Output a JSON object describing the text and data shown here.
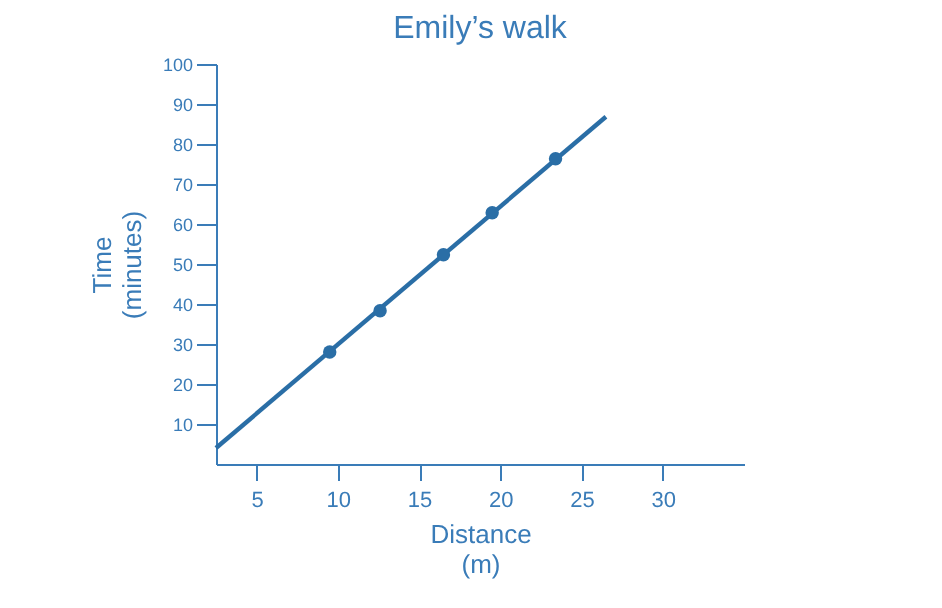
{
  "chart_data": {
    "type": "scatter",
    "title": "Emily’s walk",
    "xlabel": "Distance\n(m)",
    "ylabel": "Time\n(minutes)",
    "xlim": [
      2.5,
      35
    ],
    "xticks": [
      5,
      10,
      15,
      20,
      25,
      30
    ],
    "ylim": [
      0,
      100
    ],
    "yticks": [
      10,
      20,
      30,
      40,
      50,
      60,
      70,
      80,
      90,
      100
    ],
    "grid": false,
    "legend": false,
    "marker": "circle",
    "series": [
      {
        "type": "line",
        "marker": "none",
        "color": "#2a6ea6",
        "x": [
          2.5,
          26.5
        ],
        "values": [
          4,
          86.8
        ]
      },
      {
        "type": "scatter",
        "color": "#2a6ea6",
        "x": [
          9.5,
          12.6,
          16.5,
          19.5,
          23.4
        ],
        "values": [
          28,
          38.3,
          52.3,
          62.8,
          76.3
        ]
      }
    ]
  }
}
